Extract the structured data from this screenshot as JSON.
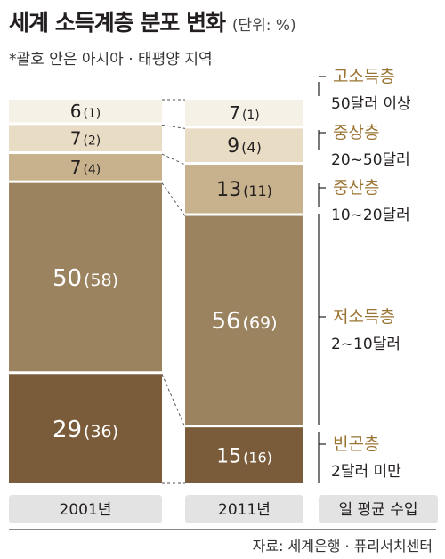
{
  "title": "세계 소득계층 분포 변화",
  "unit": "(단위: %)",
  "subtitle": "*괄호 안은 아시아 · 태평양 지역",
  "source": "자료: 세계은행 · 퓨리서치센터",
  "chart_data": {
    "type": "bar",
    "stacked": true,
    "categories": [
      "2001년",
      "2011년"
    ],
    "axis_label": "일 평균 수입",
    "series": [
      {
        "name": "빈곤층",
        "range": "2달러 미만",
        "values": [
          29,
          15
        ],
        "asia_pacific": [
          36,
          16
        ],
        "color": "#7a5c3a",
        "text_color": "#ffffff"
      },
      {
        "name": "저소득층",
        "range": "2~10달러",
        "values": [
          50,
          56
        ],
        "asia_pacific": [
          58,
          69
        ],
        "color": "#9c8360",
        "text_color": "#ffffff"
      },
      {
        "name": "중산층",
        "range": "10~20달러",
        "values": [
          7,
          13
        ],
        "asia_pacific": [
          4,
          11
        ],
        "color": "#c7b28d",
        "text_color": "#231f20"
      },
      {
        "name": "중상층",
        "range": "20~50달러",
        "values": [
          7,
          9
        ],
        "asia_pacific": [
          2,
          4
        ],
        "color": "#e8ddc4",
        "text_color": "#231f20"
      },
      {
        "name": "고소득층",
        "range": "50달러 이상",
        "values": [
          6,
          7
        ],
        "asia_pacific": [
          1,
          1
        ],
        "color": "#f5f1e6",
        "text_color": "#231f20"
      }
    ],
    "colors": {
      "legend_name": "#9a7433",
      "label_box": "#e3e3e3",
      "connector": "#555555"
    }
  }
}
